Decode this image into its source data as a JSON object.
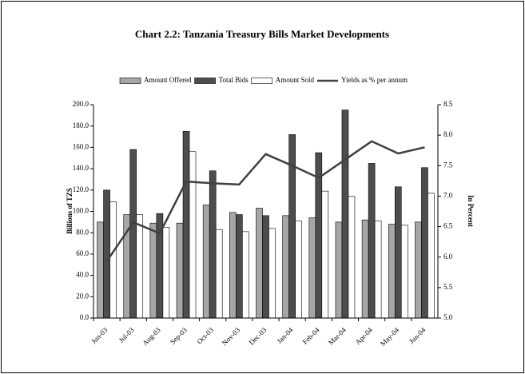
{
  "chart_data": {
    "type": "bar",
    "title": "Chart 2.2: Tanzania Treasury Bills Market Developments",
    "y_label": "Billions of TZS",
    "y2_label": "In Percent",
    "categories": [
      "Jun-03",
      "Jul-03",
      "Aug-03",
      "Sep-03",
      "Oct-03",
      "Nov-03",
      "Dec-03",
      "Jan-04",
      "Feb-04",
      "Mar-04",
      "Apr-04",
      "May-04",
      "Jun-04"
    ],
    "series": [
      {
        "name": "Amount Offered",
        "type": "bar",
        "color": "#a6a6a6",
        "values": [
          90,
          97,
          89,
          89,
          106,
          99,
          103,
          96,
          94,
          90,
          92,
          88,
          90
        ]
      },
      {
        "name": "Total Bids",
        "type": "bar",
        "color": "#4d4d4d",
        "values": [
          120,
          158,
          98,
          175,
          138,
          97,
          96,
          172,
          155,
          195,
          145,
          123,
          141
        ]
      },
      {
        "name": "Amount Sold",
        "type": "bar",
        "color": "#ffffff",
        "values": [
          109,
          97,
          85,
          156,
          83,
          81,
          84,
          91,
          119,
          114,
          91,
          87,
          117
        ]
      },
      {
        "name": "Yields as % per annum",
        "type": "line",
        "axis": "y2",
        "color": "#404040",
        "values": [
          5.93,
          6.57,
          6.39,
          7.24,
          7.21,
          7.19,
          7.69,
          7.5,
          7.3,
          7.6,
          7.9,
          7.7,
          7.8
        ]
      }
    ],
    "ylim": [
      0,
      200
    ],
    "yticks": [
      {
        "value": 0,
        "label": "0.0"
      },
      {
        "value": 20,
        "label": "20.0"
      },
      {
        "value": 40,
        "label": "40.0"
      },
      {
        "value": 60,
        "label": "60.0"
      },
      {
        "value": 80,
        "label": "80.0"
      },
      {
        "value": 100,
        "label": "100.0"
      },
      {
        "value": 120,
        "label": "120.0"
      },
      {
        "value": 140,
        "label": "140.0"
      },
      {
        "value": 160,
        "label": "160.0"
      },
      {
        "value": 180,
        "label": "180.0"
      },
      {
        "value": 200,
        "label": "200.0"
      }
    ],
    "y2lim": [
      5,
      8.5
    ],
    "y2ticks": [
      {
        "value": 5,
        "label": "5.0"
      },
      5.5,
      {
        "value": 6,
        "label": "6.0"
      },
      6.5,
      {
        "value": 7,
        "label": "7.0"
      },
      7.5,
      {
        "value": 8,
        "label": "8.0"
      },
      8.5
    ],
    "legend": "top"
  }
}
